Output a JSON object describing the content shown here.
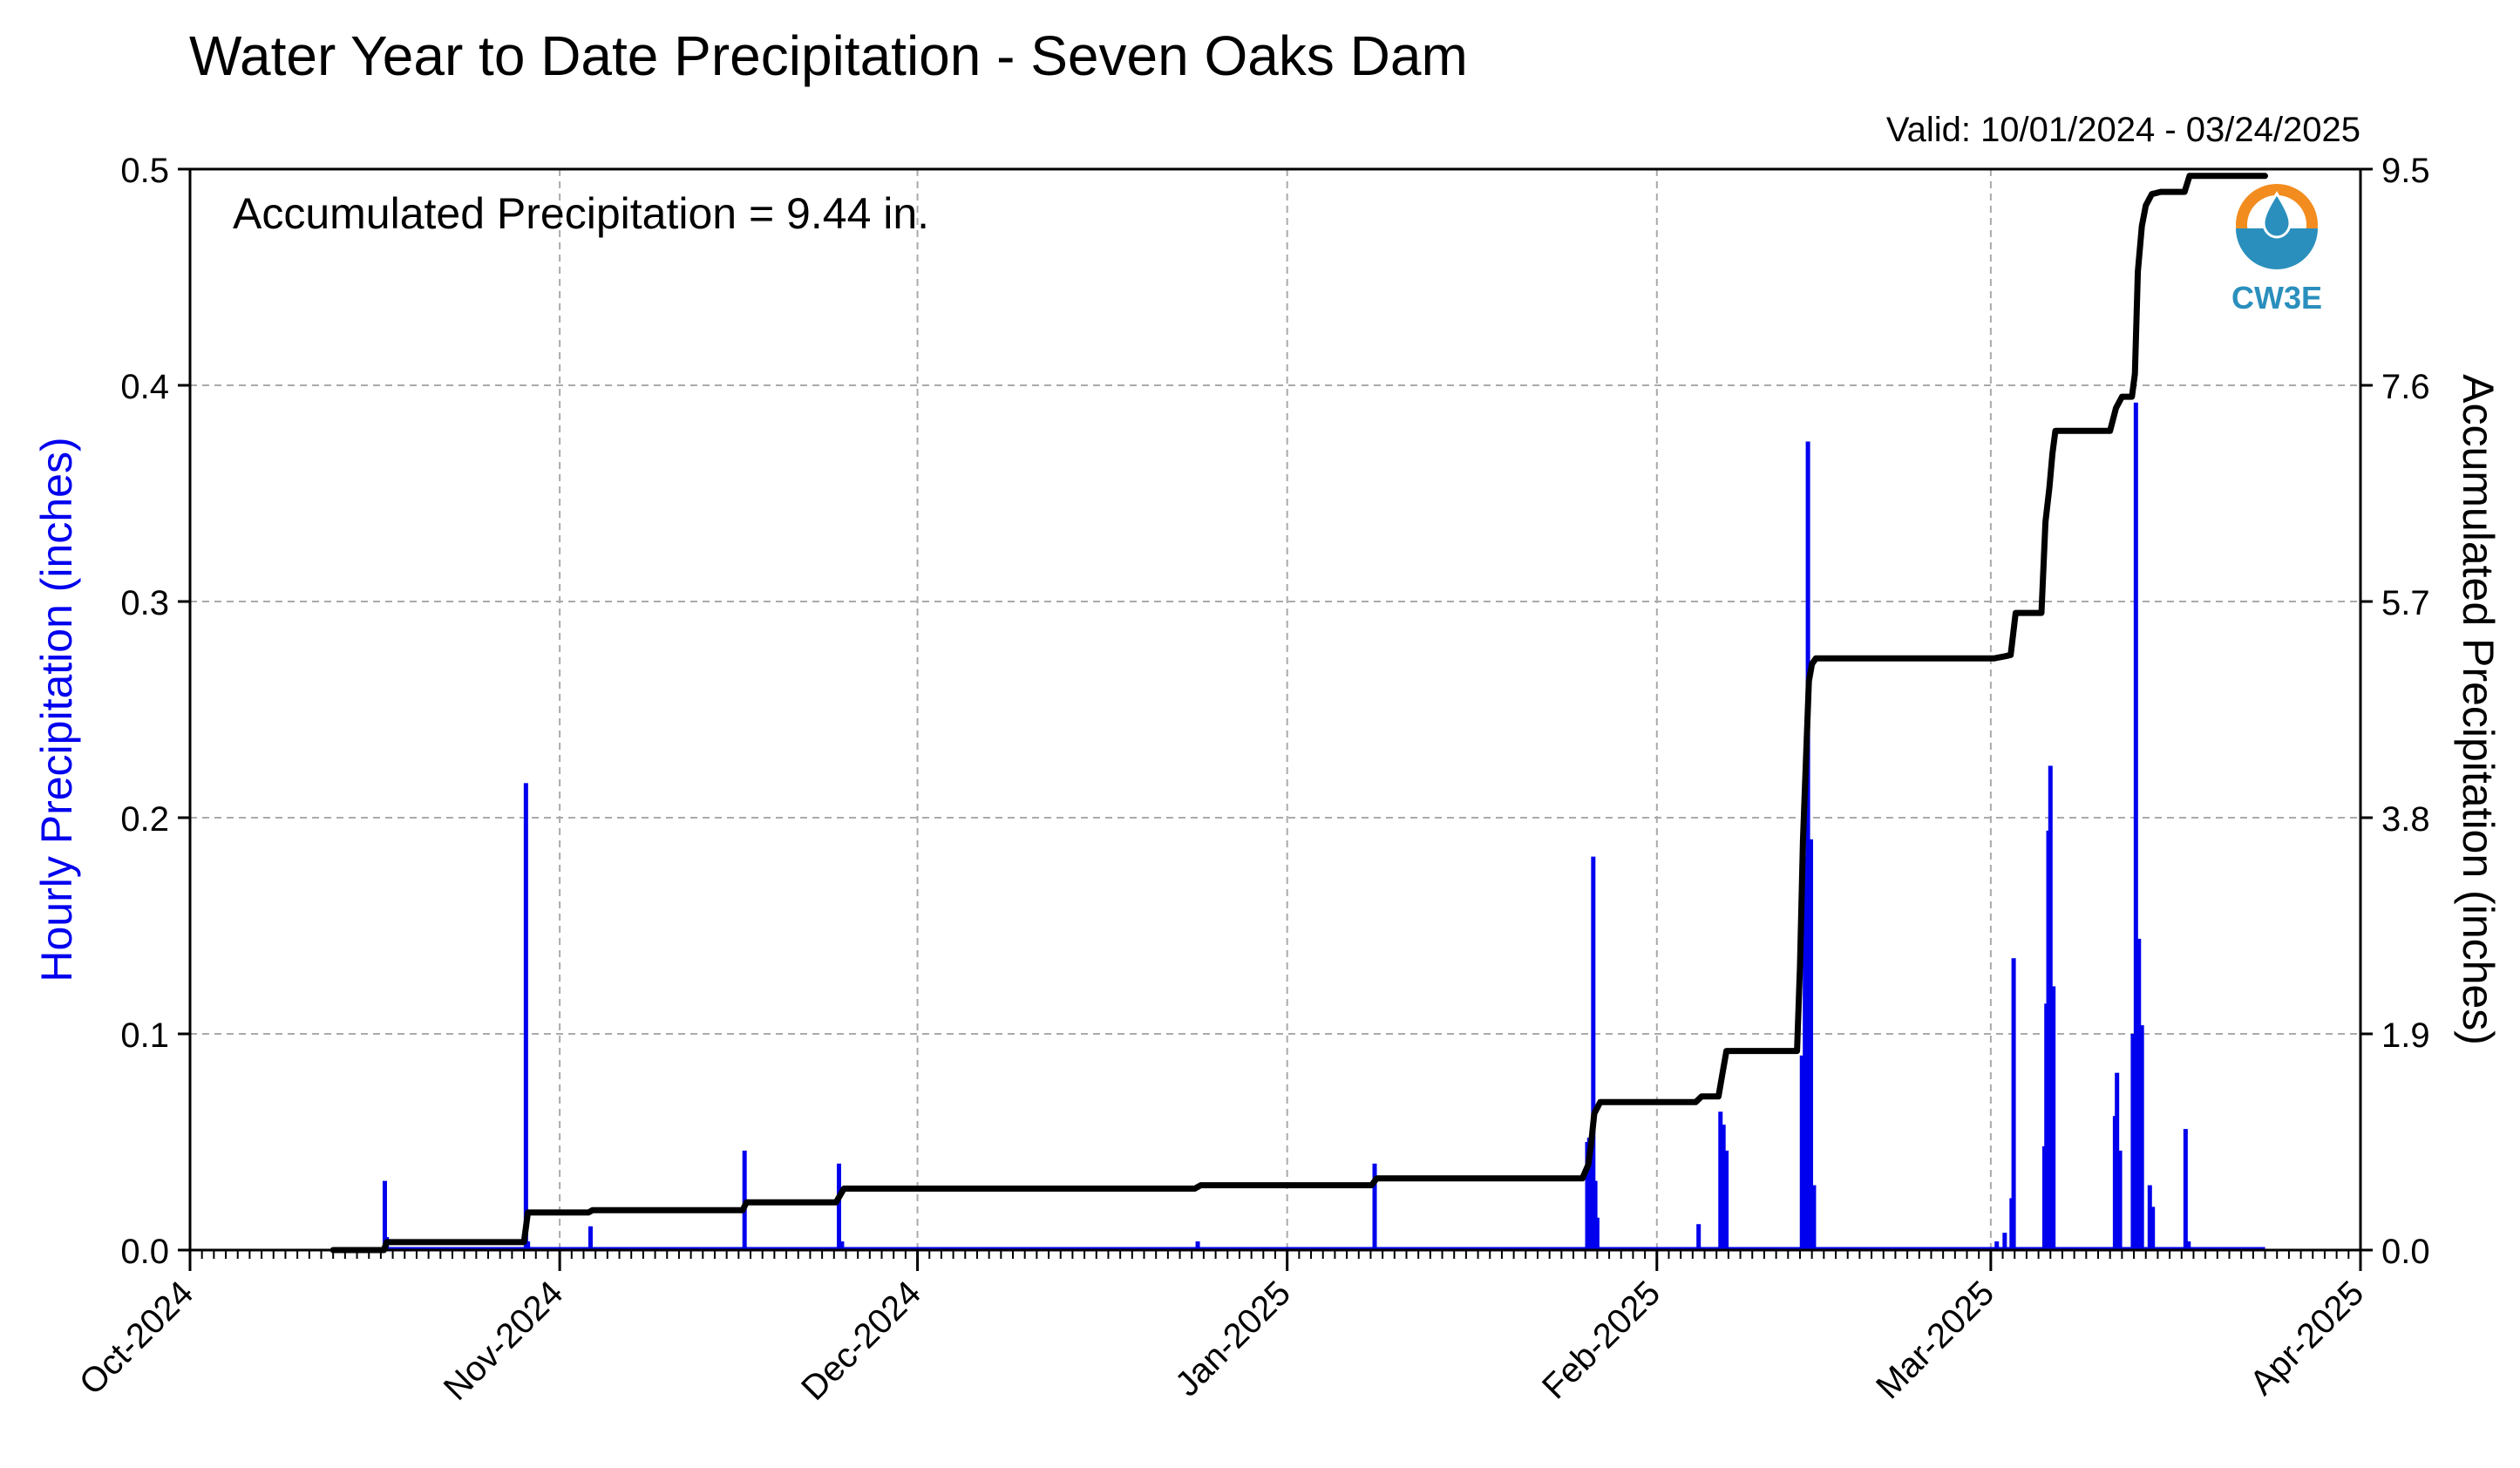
{
  "chart_data": {
    "type": "bar+line",
    "title": "Water Year to Date Precipitation - Seven Oaks Dam",
    "valid_text": "Valid: 10/01/2024 - 03/24/2025",
    "annotation": "Accumulated Precipitation = 9.44 in.",
    "logo_text": "CW3E",
    "y_left_label": "Hourly Precipitation (inches)",
    "y_right_label": "Accumulated Precipitation (inches)",
    "x_tick_labels": [
      "Oct-2024",
      "Nov-2024",
      "Dec-2024",
      "Jan-2025",
      "Feb-2025",
      "Mar-2025",
      "Apr-2025"
    ],
    "x_tick_dates": [
      "2024-10-01",
      "2024-11-01",
      "2024-12-01",
      "2025-01-01",
      "2025-02-01",
      "2025-03-01",
      "2025-04-01"
    ],
    "x_range": [
      "2024-10-01",
      "2025-04-01"
    ],
    "y_left_ticks": [
      "0.0",
      "0.1",
      "0.2",
      "0.3",
      "0.4",
      "0.5"
    ],
    "y_left_range": [
      0,
      0.5
    ],
    "y_right_ticks": [
      "0.0",
      "1.9",
      "3.8",
      "5.7",
      "7.6",
      "9.5"
    ],
    "y_right_range": [
      0,
      9.5
    ],
    "grid": true,
    "colors": {
      "hourly": "#0000ee",
      "accumulated": "#000000",
      "grid": "#aaaaaa",
      "logo_orange": "#f28c1e",
      "logo_blue": "#2a8fbd"
    },
    "series": [
      {
        "name": "Hourly Precipitation (inches)",
        "type": "bar",
        "points": [
          [
            "2024-10-17 08:00",
            0.032
          ],
          [
            "2024-10-17 12:00",
            0.006
          ],
          [
            "2024-10-29 04:00",
            0.216
          ],
          [
            "2024-10-29 08:00",
            0.004
          ],
          [
            "2024-11-03 14:00",
            0.011
          ],
          [
            "2024-11-16 12:00",
            0.046
          ],
          [
            "2024-11-24 10:00",
            0.04
          ],
          [
            "2024-11-24 16:00",
            0.004
          ],
          [
            "2024-12-24 12:00",
            0.004
          ],
          [
            "2025-01-08 08:00",
            0.04
          ],
          [
            "2025-01-26 04:00",
            0.05
          ],
          [
            "2025-01-26 08:00",
            0.052
          ],
          [
            "2025-01-26 16:00",
            0.182
          ],
          [
            "2025-01-26 20:00",
            0.032
          ],
          [
            "2025-01-27 00:00",
            0.015
          ],
          [
            "2025-02-04 12:00",
            0.012
          ],
          [
            "2025-02-06 08:00",
            0.064
          ],
          [
            "2025-02-06 14:00",
            0.058
          ],
          [
            "2025-02-06 20:00",
            0.046
          ],
          [
            "2025-02-13 04:00",
            0.09
          ],
          [
            "2025-02-13 10:00",
            0.182
          ],
          [
            "2025-02-13 16:00",
            0.374
          ],
          [
            "2025-02-13 22:00",
            0.19
          ],
          [
            "2025-02-14 04:00",
            0.03
          ],
          [
            "2025-03-01 12:00",
            0.004
          ],
          [
            "2025-03-02 04:00",
            0.008
          ],
          [
            "2025-03-02 18:00",
            0.024
          ],
          [
            "2025-03-02 22:00",
            0.135
          ],
          [
            "2025-03-05 12:00",
            0.048
          ],
          [
            "2025-03-05 16:00",
            0.114
          ],
          [
            "2025-03-05 20:00",
            0.194
          ],
          [
            "2025-03-06 00:00",
            0.224
          ],
          [
            "2025-03-06 06:00",
            0.122
          ],
          [
            "2025-03-11 10:00",
            0.062
          ],
          [
            "2025-03-11 14:00",
            0.082
          ],
          [
            "2025-03-11 20:00",
            0.046
          ],
          [
            "2025-03-12 22:00",
            0.1
          ],
          [
            "2025-03-13 04:00",
            0.392
          ],
          [
            "2025-03-13 10:00",
            0.144
          ],
          [
            "2025-03-13 16:00",
            0.104
          ],
          [
            "2025-03-14 08:00",
            0.03
          ],
          [
            "2025-03-14 14:00",
            0.02
          ],
          [
            "2025-03-17 08:00",
            0.056
          ],
          [
            "2025-03-17 14:00",
            0.004
          ]
        ]
      },
      {
        "name": "Accumulated Precipitation (inches)",
        "type": "line",
        "points": [
          [
            "2024-10-13 00:00",
            0.0
          ],
          [
            "2024-10-17 06:00",
            0.0
          ],
          [
            "2024-10-17 12:00",
            0.07
          ],
          [
            "2024-10-29 00:00",
            0.07
          ],
          [
            "2024-10-29 08:00",
            0.33
          ],
          [
            "2024-11-03 10:00",
            0.33
          ],
          [
            "2024-11-03 18:00",
            0.35
          ],
          [
            "2024-11-16 08:00",
            0.35
          ],
          [
            "2024-11-16 16:00",
            0.42
          ],
          [
            "2024-11-24 04:00",
            0.42
          ],
          [
            "2024-11-24 20:00",
            0.54
          ],
          [
            "2024-12-24 06:00",
            0.54
          ],
          [
            "2024-12-24 18:00",
            0.57
          ],
          [
            "2025-01-08 02:00",
            0.57
          ],
          [
            "2025-01-08 12:00",
            0.63
          ],
          [
            "2025-01-25 18:00",
            0.63
          ],
          [
            "2025-01-26 06:00",
            0.75
          ],
          [
            "2025-01-26 12:00",
            0.95
          ],
          [
            "2025-01-26 18:00",
            1.2
          ],
          [
            "2025-01-27 06:00",
            1.3
          ],
          [
            "2025-02-04 06:00",
            1.3
          ],
          [
            "2025-02-04 18:00",
            1.35
          ],
          [
            "2025-02-06 04:00",
            1.35
          ],
          [
            "2025-02-06 12:00",
            1.55
          ],
          [
            "2025-02-06 20:00",
            1.75
          ],
          [
            "2025-02-07 06:00",
            1.75
          ],
          [
            "2025-02-12 18:00",
            1.75
          ],
          [
            "2025-02-13 00:00",
            2.5
          ],
          [
            "2025-02-13 06:00",
            3.6
          ],
          [
            "2025-02-13 12:00",
            4.3
          ],
          [
            "2025-02-13 18:00",
            5.0
          ],
          [
            "2025-02-14 00:00",
            5.15
          ],
          [
            "2025-02-14 08:00",
            5.2
          ],
          [
            "2025-03-01 06:00",
            5.2
          ],
          [
            "2025-03-02 06:00",
            5.22
          ],
          [
            "2025-03-02 16:00",
            5.23
          ],
          [
            "2025-03-03 02:00",
            5.6
          ],
          [
            "2025-03-05 06:00",
            5.6
          ],
          [
            "2025-03-05 14:00",
            6.4
          ],
          [
            "2025-03-05 22:00",
            6.7
          ],
          [
            "2025-03-06 04:00",
            7.0
          ],
          [
            "2025-03-06 10:00",
            7.2
          ],
          [
            "2025-03-11 00:00",
            7.2
          ],
          [
            "2025-03-11 12:00",
            7.4
          ],
          [
            "2025-03-12 00:00",
            7.5
          ],
          [
            "2025-03-12 20:00",
            7.5
          ],
          [
            "2025-03-13 02:00",
            7.7
          ],
          [
            "2025-03-13 08:00",
            8.6
          ],
          [
            "2025-03-13 16:00",
            9.0
          ],
          [
            "2025-03-14 00:00",
            9.18
          ],
          [
            "2025-03-14 12:00",
            9.28
          ],
          [
            "2025-03-15 06:00",
            9.3
          ],
          [
            "2025-03-17 06:00",
            9.3
          ],
          [
            "2025-03-17 16:00",
            9.44
          ],
          [
            "2025-03-24 00:00",
            9.44
          ]
        ]
      }
    ]
  }
}
